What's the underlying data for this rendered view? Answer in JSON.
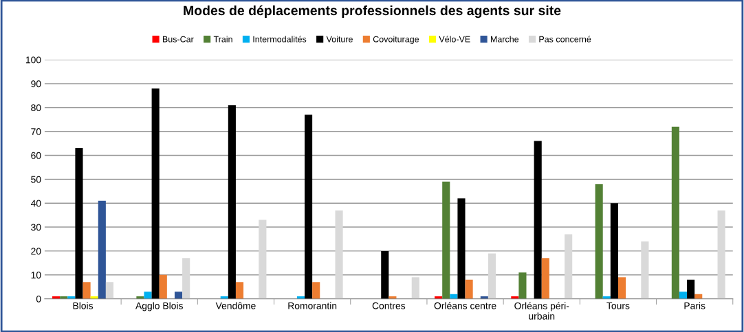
{
  "chart_data": {
    "type": "bar",
    "title": "Modes de déplacements professionnels des agents sur site",
    "categories": [
      "Blois",
      "Agglo Blois",
      "Vendôme",
      "Romorantin",
      "Contres",
      "Orléans centre",
      "Orléans péri-urbain",
      "Tours",
      "Paris"
    ],
    "series": [
      {
        "name": "Bus-Car",
        "color": "#ff0000",
        "values": [
          1,
          0,
          0,
          0,
          0,
          1,
          1,
          0,
          0
        ]
      },
      {
        "name": "Train",
        "color": "#538135",
        "values": [
          1,
          1,
          0,
          0,
          0,
          49,
          11,
          48,
          72
        ]
      },
      {
        "name": "Intermodalités",
        "color": "#00b0f0",
        "values": [
          1,
          3,
          1,
          1,
          0,
          2,
          0,
          1,
          3
        ]
      },
      {
        "name": "Voiture",
        "color": "#000000",
        "values": [
          63,
          88,
          81,
          77,
          20,
          42,
          66,
          40,
          8
        ]
      },
      {
        "name": "Covoiturage",
        "color": "#ed7d31",
        "values": [
          7,
          10,
          7,
          7,
          1,
          8,
          17,
          9,
          2
        ]
      },
      {
        "name": "Vélo-VE",
        "color": "#ffff00",
        "values": [
          1,
          0,
          0,
          0,
          0,
          0,
          0,
          0,
          0
        ]
      },
      {
        "name": "Marche",
        "color": "#2f5597",
        "values": [
          41,
          3,
          0,
          0,
          0,
          1,
          0,
          0,
          0
        ]
      },
      {
        "name": "Pas concerné",
        "color": "#d9d9d9",
        "values": [
          7,
          17,
          33,
          37,
          9,
          19,
          27,
          24,
          37
        ]
      }
    ],
    "ylim": [
      0,
      100
    ],
    "yticks": [
      0,
      10,
      20,
      30,
      40,
      50,
      60,
      70,
      80,
      90,
      100
    ],
    "grid": "y",
    "legend": "top"
  }
}
